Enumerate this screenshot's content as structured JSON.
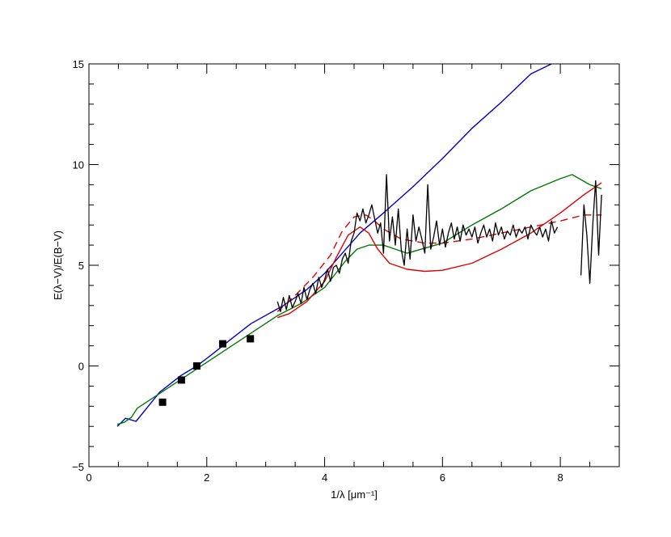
{
  "chart_data": {
    "type": "line",
    "title": "",
    "xlabel": "1/λ [μm⁻¹]",
    "ylabel": "E(λ−V)/E(B−V)",
    "xlim": [
      0,
      9
    ],
    "ylim": [
      -5,
      15
    ],
    "xticks": [
      0,
      2,
      4,
      6,
      8
    ],
    "yticks": [
      -5,
      0,
      5,
      10,
      15
    ],
    "grid": false,
    "legend": "none",
    "colors": {
      "blue": "#0000cc",
      "green": "#007700",
      "red": "#dd0000",
      "black": "#000000"
    },
    "series": [
      {
        "color": "blue",
        "style": "solid",
        "x": [
          0.48,
          0.62,
          0.8,
          1.2,
          1.55,
          1.83,
          2.1,
          2.4,
          2.75,
          3.3,
          3.7,
          4.0,
          4.3,
          4.6,
          5.0,
          5.5,
          6.0,
          6.5,
          7.0,
          7.5,
          7.85
        ],
        "y": [
          -3.0,
          -2.6,
          -2.75,
          -1.3,
          -0.5,
          0.0,
          0.6,
          1.3,
          2.1,
          3.0,
          3.8,
          4.6,
          5.6,
          6.6,
          7.6,
          8.9,
          10.3,
          11.8,
          13.1,
          14.5,
          15.0
        ]
      },
      {
        "color": "green",
        "style": "solid",
        "x": [
          0.48,
          0.6,
          0.72,
          0.82,
          3.2,
          3.6,
          4.0,
          4.35,
          4.55,
          4.75,
          5.0,
          5.4,
          6.0,
          6.5,
          7.0,
          7.5,
          8.0,
          8.2,
          8.5,
          8.7
        ],
        "y": [
          -2.9,
          -2.8,
          -2.55,
          -2.1,
          2.5,
          3.1,
          3.9,
          5.2,
          5.8,
          6.0,
          6.0,
          5.6,
          6.1,
          7.0,
          7.8,
          8.7,
          9.3,
          9.5,
          9.0,
          8.8
        ]
      },
      {
        "color": "red",
        "style": "solid",
        "x": [
          3.2,
          3.4,
          3.7,
          4.0,
          4.2,
          4.4,
          4.6,
          4.75,
          4.9,
          5.1,
          5.4,
          5.7,
          6.0,
          6.5,
          7.0,
          7.5,
          8.0,
          8.4,
          8.7
        ],
        "y": [
          2.4,
          2.6,
          3.2,
          4.2,
          5.4,
          6.5,
          6.9,
          6.6,
          5.8,
          5.1,
          4.8,
          4.7,
          4.75,
          5.1,
          5.8,
          6.6,
          7.6,
          8.5,
          9.1
        ]
      },
      {
        "color": "red",
        "style": "dashed",
        "x": [
          3.2,
          3.5,
          3.8,
          4.1,
          4.3,
          4.5,
          4.7,
          4.85,
          5.0,
          5.3,
          5.7,
          6.0,
          6.5,
          7.0,
          7.5,
          8.0,
          8.4,
          8.7
        ],
        "y": [
          2.7,
          3.5,
          4.4,
          5.5,
          6.7,
          7.4,
          7.5,
          7.2,
          6.8,
          6.3,
          6.1,
          6.1,
          6.3,
          6.6,
          6.9,
          7.2,
          7.5,
          7.5
        ]
      },
      {
        "color": "black",
        "style": "noisy",
        "x": [
          3.2,
          3.25,
          3.3,
          3.35,
          3.4,
          3.45,
          3.5,
          3.55,
          3.6,
          3.65,
          3.7,
          3.75,
          3.8,
          3.85,
          3.9,
          3.95,
          4.0,
          4.05,
          4.1,
          4.15,
          4.2,
          4.25,
          4.3,
          4.35,
          4.4,
          4.45,
          4.5,
          4.55,
          4.6,
          4.65,
          4.7,
          4.75,
          4.8,
          4.85,
          4.9,
          4.95,
          5.0,
          5.05,
          5.1,
          5.15,
          5.2,
          5.25,
          5.3,
          5.35,
          5.4,
          5.45,
          5.5,
          5.55,
          5.6,
          5.65,
          5.7,
          5.75,
          5.8,
          5.85,
          5.9,
          5.95,
          6.0,
          6.05,
          6.1,
          6.15,
          6.2,
          6.25,
          6.3,
          6.35,
          6.4,
          6.45,
          6.5,
          6.55,
          6.6,
          6.65,
          6.7,
          6.75,
          6.8,
          6.85,
          6.9,
          6.95,
          7.0,
          7.05,
          7.1,
          7.15,
          7.2,
          7.25,
          7.3,
          7.35,
          7.4,
          7.45,
          7.5,
          7.55,
          7.6,
          7.65,
          7.7,
          7.75,
          7.8,
          7.85,
          7.9,
          7.95
        ],
        "y": [
          3.2,
          2.7,
          3.4,
          2.8,
          3.5,
          2.9,
          3.2,
          3.6,
          3.1,
          3.9,
          3.3,
          3.8,
          4.1,
          3.6,
          4.4,
          3.9,
          4.3,
          4.8,
          4.2,
          4.9,
          5.0,
          4.6,
          5.3,
          5.6,
          5.1,
          6.2,
          6.6,
          7.6,
          7.2,
          7.8,
          7.1,
          7.5,
          8.0,
          7.3,
          6.6,
          7.1,
          5.6,
          9.5,
          6.2,
          7.4,
          6.0,
          7.8,
          5.8,
          5.0,
          6.8,
          5.3,
          7.5,
          6.2,
          6.9,
          6.3,
          5.6,
          9.0,
          5.8,
          6.4,
          7.2,
          6.0,
          6.8,
          5.9,
          6.6,
          7.1,
          6.3,
          6.9,
          6.2,
          7.0,
          6.5,
          6.8,
          6.4,
          6.9,
          6.1,
          6.6,
          7.0,
          6.4,
          6.8,
          6.2,
          7.1,
          6.5,
          6.9,
          6.3,
          6.7,
          6.5,
          7.0,
          6.4,
          6.8,
          6.6,
          6.9,
          6.3,
          7.0,
          6.7,
          6.5,
          6.9,
          6.4,
          6.8,
          6.2,
          7.2,
          6.6,
          6.9
        ]
      },
      {
        "color": "black",
        "style": "noisy",
        "x": [
          8.35,
          8.4,
          8.45,
          8.5,
          8.55,
          8.6,
          8.65,
          8.7
        ],
        "y": [
          4.5,
          8.0,
          6.5,
          4.1,
          7.0,
          9.2,
          5.5,
          8.5
        ]
      }
    ],
    "markers": {
      "color": "black",
      "shape": "square",
      "x": [
        1.25,
        1.57,
        1.83,
        2.27,
        2.74
      ],
      "y": [
        -1.8,
        -0.7,
        0.0,
        1.1,
        1.35
      ]
    }
  }
}
